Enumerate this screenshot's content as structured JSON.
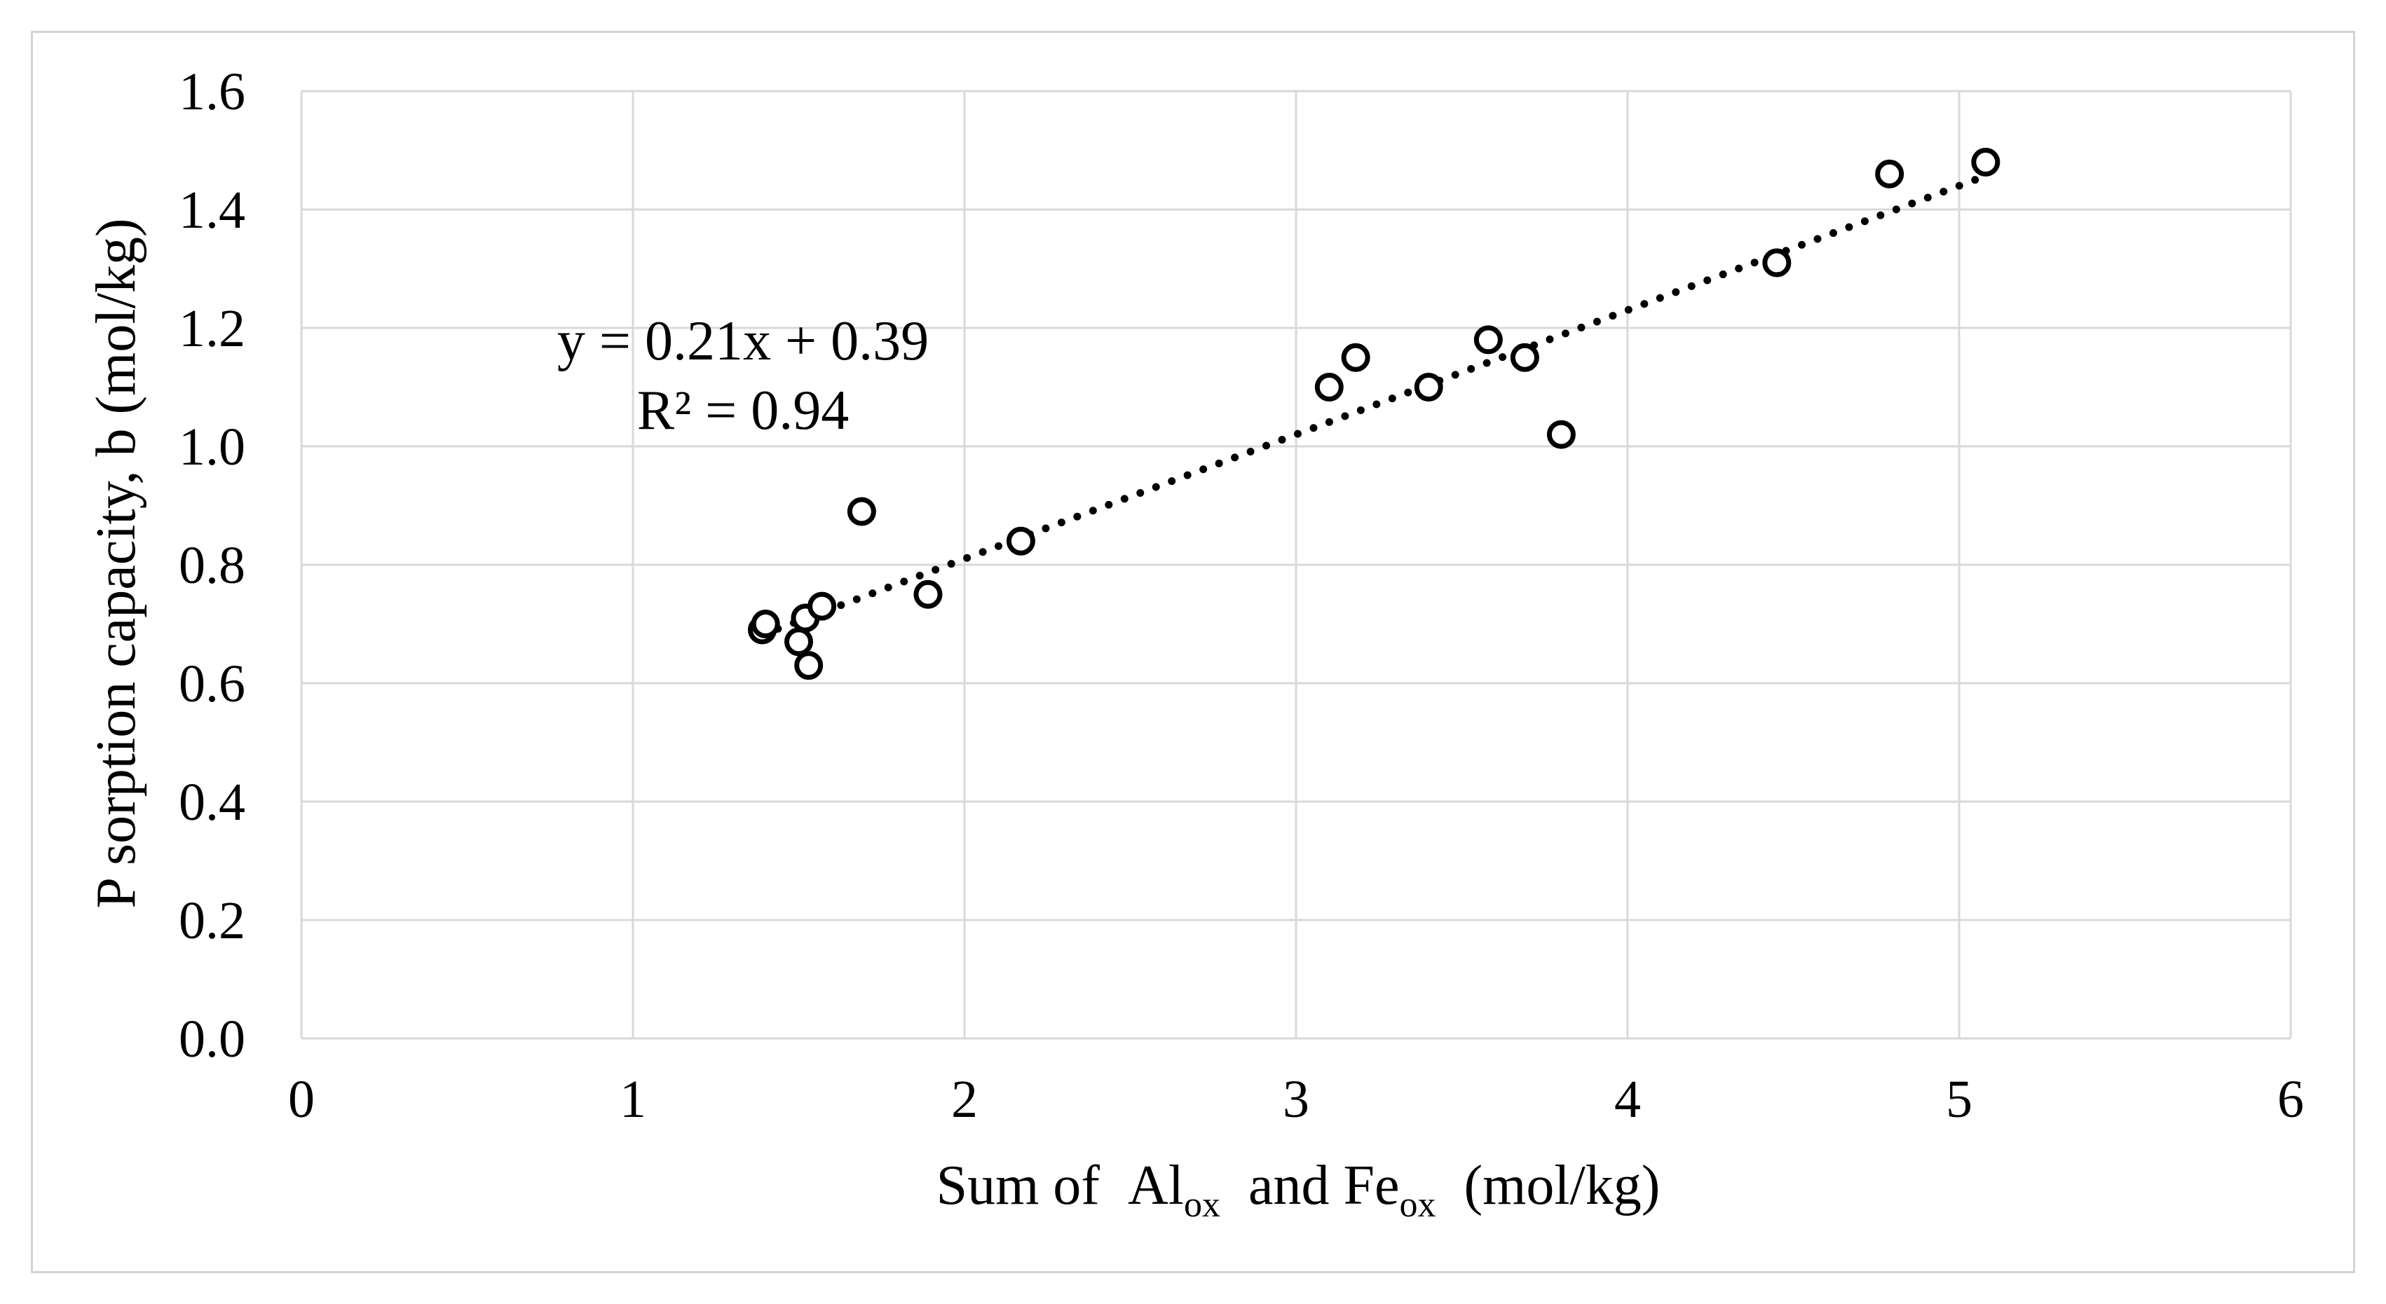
{
  "chart_data": {
    "type": "scatter",
    "title": "",
    "xlabel": {
      "parts": [
        {
          "text": "Sum of  Al",
          "sub": false
        },
        {
          "text": "ox",
          "sub": true
        },
        {
          "text": "  and Fe",
          "sub": false
        },
        {
          "text": "ox",
          "sub": true
        },
        {
          "text": "  (mol/kg)",
          "sub": false
        }
      ]
    },
    "ylabel": "P sorption capacity, b (mol/kg)",
    "xlim": [
      0,
      6
    ],
    "ylim": [
      0,
      1.6
    ],
    "x_ticks": [
      "0",
      "1",
      "2",
      "3",
      "4",
      "5",
      "6"
    ],
    "y_ticks": [
      "0.0",
      "0.2",
      "0.4",
      "0.6",
      "0.8",
      "1.0",
      "1.2",
      "1.4",
      "1.6"
    ],
    "grid": true,
    "marker": "open-circle",
    "marker_color": "#000000",
    "points": [
      {
        "x": 1.39,
        "y": 0.69
      },
      {
        "x": 1.4,
        "y": 0.7
      },
      {
        "x": 1.5,
        "y": 0.67
      },
      {
        "x": 1.52,
        "y": 0.71
      },
      {
        "x": 1.53,
        "y": 0.63
      },
      {
        "x": 1.57,
        "y": 0.73
      },
      {
        "x": 1.69,
        "y": 0.89
      },
      {
        "x": 1.89,
        "y": 0.75
      },
      {
        "x": 2.17,
        "y": 0.84
      },
      {
        "x": 3.1,
        "y": 1.1
      },
      {
        "x": 3.18,
        "y": 1.15
      },
      {
        "x": 3.4,
        "y": 1.1
      },
      {
        "x": 3.58,
        "y": 1.18
      },
      {
        "x": 3.69,
        "y": 1.15
      },
      {
        "x": 3.8,
        "y": 1.02
      },
      {
        "x": 4.45,
        "y": 1.31
      },
      {
        "x": 4.79,
        "y": 1.46
      },
      {
        "x": 5.08,
        "y": 1.48
      }
    ],
    "trendline": {
      "style": "dotted",
      "slope": 0.21,
      "intercept": 0.39,
      "x_range": [
        1.39,
        5.08
      ],
      "equation_label": "y = 0.21x + 0.39",
      "r2_label": "R² = 0.94"
    }
  }
}
